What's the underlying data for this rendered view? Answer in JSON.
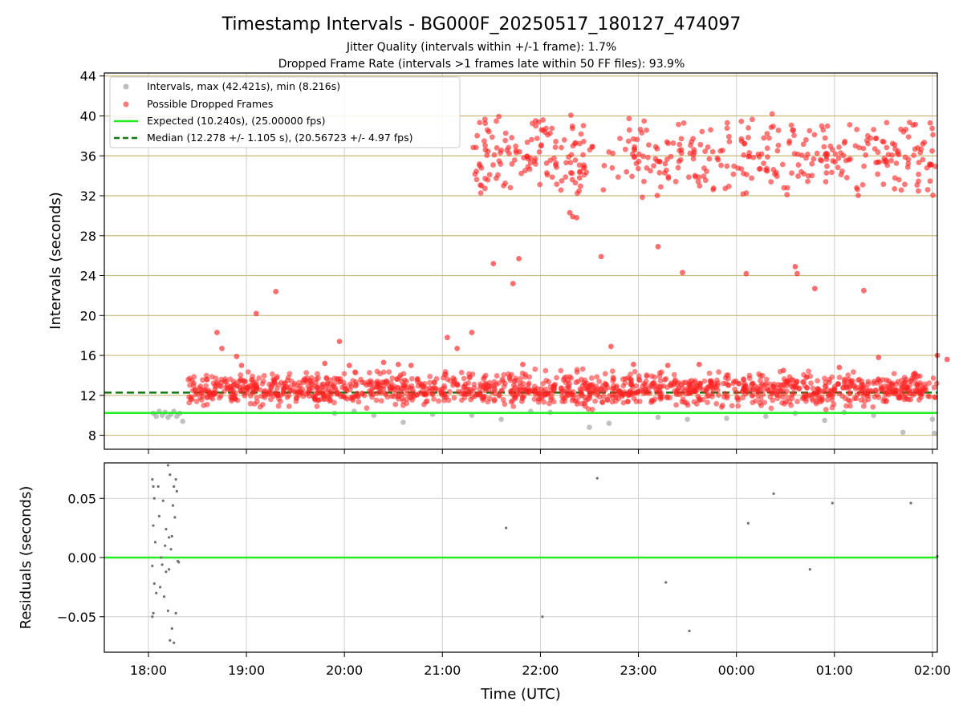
{
  "figure": {
    "title": "Timestamp Intervals - BG000F_20250517_180127_474097",
    "subtitle_1": "Jitter Quality (intervals within +/-1 frame): 1.7%",
    "subtitle_2": "Dropped Frame Rate (intervals >1 frames late within 50 FF files): 93.9%"
  },
  "chart_data": [
    {
      "type": "scatter",
      "panel": "intervals",
      "title": "",
      "xlabel": "",
      "ylabel": "Intervals (seconds)",
      "x_unit": "hours since 18:00 UTC (18:00 to 02:10)",
      "xlim": [
        -0.45,
        8.05
      ],
      "ylim": [
        6.6,
        44.3
      ],
      "yticks": [
        8,
        12,
        16,
        20,
        24,
        28,
        32,
        36,
        40,
        44
      ],
      "xtick_values": [
        0,
        1,
        2,
        3,
        4,
        5,
        6,
        7,
        8
      ],
      "grid": {
        "horizontal": "tan",
        "vertical": "lightgray"
      },
      "legend": {
        "position": "top-left",
        "entries": [
          {
            "label": "Intervals, max (42.421s), min (8.216s)",
            "marker": "circle",
            "color": "#a0a0a0"
          },
          {
            "label": "Possible Dropped Frames",
            "marker": "circle",
            "color": "#ff4040"
          },
          {
            "label": "Expected (10.240s), (25.00000 fps)",
            "marker": "solid-line",
            "color": "#22ee22"
          },
          {
            "label": "Median (12.278 +/- 1.105 s), (20.56723 +/- 4.97 fps)",
            "marker": "dashed-line",
            "color": "#117711"
          }
        ]
      },
      "lines": {
        "expected": 10.24,
        "median": 12.278
      },
      "series": [
        {
          "name": "Intervals, max (42.421s), min (8.216s)",
          "color": "#a0a0a0",
          "points": [
            [
              0.05,
              10.2
            ],
            [
              0.08,
              9.9
            ],
            [
              0.11,
              10.4
            ],
            [
              0.14,
              10.0
            ],
            [
              0.17,
              10.3
            ],
            [
              0.2,
              9.8
            ],
            [
              0.23,
              10.1
            ],
            [
              0.26,
              10.4
            ],
            [
              0.29,
              9.9
            ],
            [
              0.32,
              10.2
            ],
            [
              0.35,
              9.4
            ],
            [
              3.3,
              10.0
            ],
            [
              3.6,
              9.6
            ],
            [
              4.1,
              10.3
            ],
            [
              4.7,
              9.2
            ],
            [
              5.2,
              9.8
            ],
            [
              5.9,
              9.7
            ],
            [
              6.3,
              9.9
            ],
            [
              6.9,
              9.5
            ],
            [
              7.1,
              10.3
            ],
            [
              7.7,
              8.3
            ],
            [
              8.0,
              9.6
            ],
            [
              8.02,
              8.2
            ],
            [
              2.3,
              10.0
            ],
            [
              2.6,
              9.3
            ],
            [
              2.9,
              10.1
            ],
            [
              3.9,
              10.4
            ],
            [
              4.5,
              8.8
            ],
            [
              5.5,
              9.6
            ],
            [
              6.6,
              10.2
            ],
            [
              7.4,
              10.0
            ],
            [
              1.9,
              10.2
            ],
            [
              2.1,
              10.4
            ]
          ]
        },
        {
          "name": "Possible Dropped Frames",
          "color": "#ff2020",
          "points": [
            [
              0.7,
              18.3
            ],
            [
              0.75,
              16.7
            ],
            [
              0.9,
              15.9
            ],
            [
              0.95,
              15.0
            ],
            [
              1.1,
              20.2
            ],
            [
              1.3,
              22.4
            ],
            [
              1.8,
              15.2
            ],
            [
              1.95,
              17.4
            ],
            [
              2.05,
              15.0
            ],
            [
              2.4,
              15.3
            ],
            [
              2.55,
              15.1
            ],
            [
              2.68,
              15.0
            ],
            [
              3.05,
              17.8
            ],
            [
              3.15,
              16.7
            ],
            [
              3.3,
              18.3
            ],
            [
              3.52,
              25.2
            ],
            [
              3.78,
              25.7
            ],
            [
              3.72,
              23.2
            ],
            [
              3.82,
              15.1
            ],
            [
              4.62,
              25.9
            ],
            [
              4.72,
              16.9
            ],
            [
              4.95,
              15.1
            ],
            [
              5.2,
              26.9
            ],
            [
              5.3,
              15.0
            ],
            [
              5.45,
              24.3
            ],
            [
              5.62,
              15.1
            ],
            [
              6.1,
              24.2
            ],
            [
              6.48,
              14.5
            ],
            [
              6.6,
              24.9
            ],
            [
              6.62,
              24.2
            ],
            [
              6.8,
              22.7
            ],
            [
              7.05,
              14.8
            ],
            [
              7.3,
              22.5
            ],
            [
              7.45,
              15.8
            ],
            [
              7.82,
              14.2
            ],
            [
              8.15,
              15.6
            ],
            [
              8.05,
              16.0
            ],
            [
              4.3,
              30.3
            ],
            [
              4.33,
              29.9
            ],
            [
              4.37,
              29.8
            ],
            [
              4.4,
              33.8
            ]
          ],
          "upper_band": {
            "x_range": [
              3.3,
              8.05
            ],
            "y_center": 36.0,
            "y_spread": 2.8
          },
          "lower_band": {
            "x_range": [
              0.4,
              8.05
            ],
            "y_center": 12.6,
            "y_spread": 1.3
          }
        }
      ]
    },
    {
      "type": "scatter",
      "panel": "residuals",
      "title": "",
      "xlabel": "Time (UTC)",
      "ylabel": "Residuals (seconds)",
      "xlim": [
        -0.45,
        8.05
      ],
      "ylim": [
        -0.08,
        0.08
      ],
      "yticks": [
        -0.05,
        0.0,
        0.05
      ],
      "ytick_labels": [
        "−0.05",
        "0.00",
        "0.05"
      ],
      "xtick_values": [
        0,
        1,
        2,
        3,
        4,
        5,
        6,
        7,
        8
      ],
      "xtick_labels": [
        "18:00",
        "19:00",
        "20:00",
        "21:00",
        "22:00",
        "23:00",
        "00:00",
        "01:00",
        "02:00"
      ],
      "grid": {
        "both": "lightgray"
      },
      "zero_line": 0.0,
      "series": [
        {
          "name": "",
          "color": "#707070",
          "points": [
            [
              0.04,
              0.066
            ],
            [
              0.05,
              0.06
            ],
            [
              0.06,
              0.05
            ],
            [
              0.05,
              0.027
            ],
            [
              0.07,
              0.013
            ],
            [
              0.04,
              -0.007
            ],
            [
              0.06,
              -0.022
            ],
            [
              0.05,
              -0.047
            ],
            [
              0.04,
              -0.05
            ],
            [
              0.08,
              -0.03
            ],
            [
              0.1,
              0.06
            ],
            [
              0.11,
              0.035
            ],
            [
              0.13,
              0.0
            ],
            [
              0.14,
              -0.006
            ],
            [
              0.16,
              -0.033
            ],
            [
              0.12,
              -0.025
            ],
            [
              0.18,
              0.024
            ],
            [
              0.2,
              0.078
            ],
            [
              0.22,
              0.07
            ],
            [
              0.21,
              0.017
            ],
            [
              0.2,
              -0.045
            ],
            [
              0.24,
              -0.06
            ],
            [
              0.22,
              -0.07
            ],
            [
              0.25,
              0.044
            ],
            [
              0.26,
              0.06
            ],
            [
              0.27,
              0.034
            ],
            [
              0.28,
              0.066
            ],
            [
              0.29,
              0.056
            ],
            [
              0.3,
              -0.003
            ],
            [
              0.31,
              -0.004
            ],
            [
              0.26,
              -0.072
            ],
            [
              0.28,
              -0.047
            ],
            [
              0.24,
              0.018
            ],
            [
              0.23,
              0.007
            ],
            [
              0.18,
              -0.012
            ],
            [
              0.21,
              -0.01
            ],
            [
              0.17,
              0.01
            ],
            [
              0.15,
              0.048
            ],
            [
              3.65,
              0.025
            ],
            [
              4.02,
              -0.05
            ],
            [
              4.58,
              0.067
            ],
            [
              5.28,
              -0.021
            ],
            [
              5.52,
              -0.062
            ],
            [
              6.12,
              0.029
            ],
            [
              6.38,
              0.054
            ],
            [
              6.75,
              -0.01
            ],
            [
              6.98,
              0.046
            ],
            [
              7.78,
              0.046
            ],
            [
              8.05,
              0.001
            ]
          ]
        }
      ]
    }
  ]
}
